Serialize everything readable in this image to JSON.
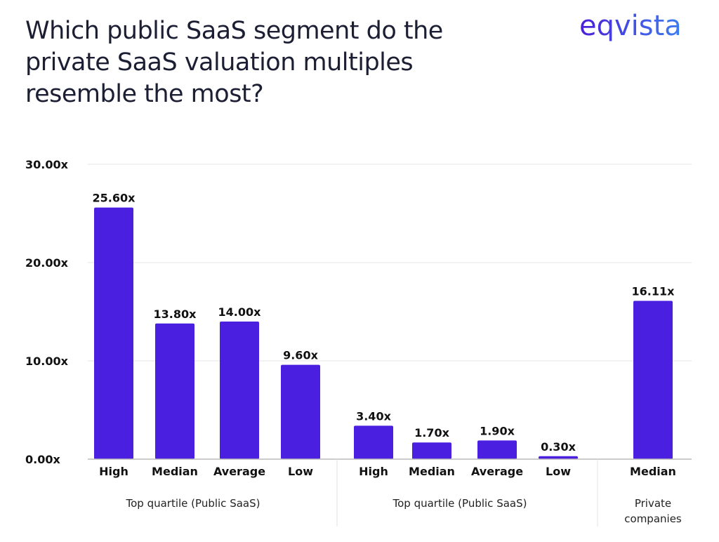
{
  "logo_text": "eqvista",
  "chart_data": {
    "type": "bar",
    "title": "Which public SaaS segment do the private SaaS valuation multiples resemble the most?",
    "categories": [
      "High",
      "Median",
      "Average",
      "Low",
      "High",
      "Median",
      "Average",
      "Low",
      "Median"
    ],
    "groups": [
      {
        "label": "Top quartile (Public SaaS)",
        "count": 4
      },
      {
        "label": "Top quartile (Public SaaS)",
        "count": 4
      },
      {
        "label": "Private companies",
        "count": 1
      }
    ],
    "values": [
      25.6,
      13.8,
      14.0,
      9.6,
      3.4,
      1.7,
      1.9,
      0.3,
      16.11
    ],
    "data_labels": [
      "25.60x",
      "13.80x",
      "14.00x",
      "9.60x",
      "3.40x",
      "1.70x",
      "1.90x",
      "0.30x",
      "16.11x"
    ],
    "ylim": [
      0,
      30
    ],
    "yticks": [
      0,
      10,
      20,
      30
    ],
    "ytick_labels": [
      "0.00x",
      "10.00x",
      "20.00x",
      "30.00x"
    ],
    "xlabel": "",
    "ylabel": "",
    "grid": true,
    "bar_color": "#4b1fe0"
  }
}
